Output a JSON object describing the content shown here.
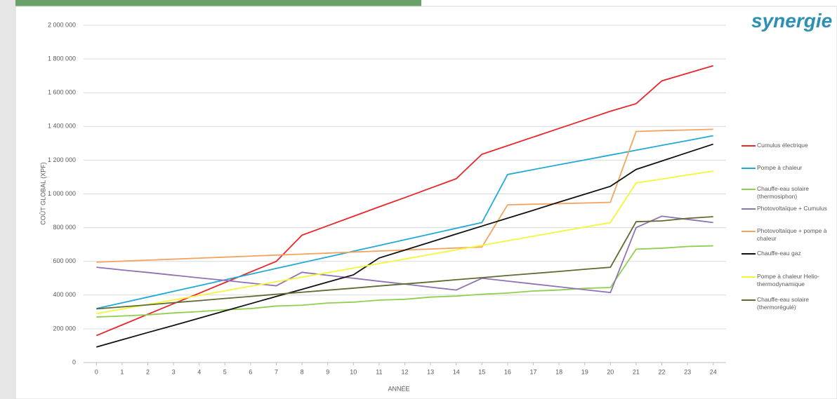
{
  "chart_data": {
    "type": "line",
    "xlabel": "ANNÉE",
    "ylabel": "COÛT GLOBAL (XPF)",
    "logo": "synergie",
    "x": [
      0,
      1,
      2,
      3,
      4,
      5,
      6,
      7,
      8,
      9,
      10,
      11,
      12,
      13,
      14,
      15,
      16,
      17,
      18,
      19,
      20,
      21,
      22,
      23,
      24
    ],
    "xlim": [
      -0.5,
      24.5
    ],
    "ylim": [
      0,
      2000000
    ],
    "yticks": [
      0,
      {
        "value": 200000,
        "label": "200 000"
      },
      {
        "value": 400000,
        "label": "400 000"
      },
      {
        "value": 600000,
        "label": "600 000"
      },
      {
        "value": 800000,
        "label": "800 000"
      },
      {
        "value": 1000000,
        "label": "1 000 000"
      },
      {
        "value": 1200000,
        "label": "1 200 000"
      },
      {
        "value": 1400000,
        "label": "1 400 000"
      },
      {
        "value": 1600000,
        "label": "1 600 000"
      },
      {
        "value": 1800000,
        "label": "1 800 000"
      },
      {
        "value": 2000000,
        "label": "2 000 000"
      }
    ],
    "grid": true,
    "legend": "right",
    "series": [
      {
        "name": "Cumulus électrique",
        "color": "#e8262b",
        "values": [
          160000,
          223000,
          286000,
          349000,
          411000,
          474000,
          537000,
          600000,
          755000,
          811000,
          867000,
          923000,
          978000,
          1034000,
          1090000,
          1235000,
          1286000,
          1337000,
          1388000,
          1439000,
          1490000,
          1535000,
          1670000,
          1715000,
          1760000
        ]
      },
      {
        "name": "Pompe à chaleur",
        "color": "#22a9d8",
        "values": [
          320000,
          354000,
          388000,
          422000,
          456000,
          490000,
          524000,
          558000,
          592000,
          626000,
          660000,
          694000,
          728000,
          762000,
          796000,
          830000,
          1115000,
          1144000,
          1173000,
          1201000,
          1230000,
          1259000,
          1288000,
          1316000,
          1345000
        ]
      },
      {
        "name": "Chauffe-eau solaire (thermosiphon)",
        "color": "#8fcf4f",
        "values": [
          270000,
          276000,
          283000,
          294000,
          302000,
          313000,
          320000,
          335000,
          340000,
          353000,
          358000,
          370000,
          375000,
          388000,
          394000,
          405000,
          412000,
          424000,
          430000,
          440000,
          445000,
          672000,
          678000,
          688000,
          692000
        ]
      },
      {
        "name": "Photovoltaïque + Cumulus",
        "color": "#8f72b5",
        "values": [
          565000,
          549000,
          534000,
          518000,
          502000,
          487000,
          471000,
          455000,
          535000,
          517000,
          500000,
          482000,
          465000,
          447000,
          430000,
          500000,
          483000,
          466000,
          449000,
          432000,
          415000,
          800000,
          868000,
          849000,
          830000
        ]
      },
      {
        "name": "Photovoltaïque + pompe à chaleur",
        "color": "#f4a460",
        "values": [
          595000,
          601000,
          607000,
          613000,
          619000,
          625000,
          631000,
          637000,
          643000,
          649000,
          655000,
          661000,
          667000,
          673000,
          679000,
          685000,
          935000,
          939000,
          942000,
          946000,
          950000,
          1370000,
          1375000,
          1379000,
          1383000
        ]
      },
      {
        "name": "Chauffe-eau gaz",
        "color": "#111111",
        "values": [
          92000,
          135000,
          178000,
          220000,
          263000,
          306000,
          349000,
          392000,
          434000,
          477000,
          520000,
          620000,
          667000,
          714000,
          762000,
          809000,
          856000,
          903000,
          951000,
          998000,
          1045000,
          1145000,
          1195000,
          1245000,
          1295000
        ]
      },
      {
        "name": "Pompe à chaleur Helio-thermodynamique",
        "color": "#f5f53a",
        "values": [
          290000,
          317000,
          344000,
          371000,
          398000,
          425000,
          452000,
          479000,
          506000,
          533000,
          560000,
          587000,
          614000,
          641000,
          668000,
          695000,
          722000,
          749000,
          776000,
          803000,
          830000,
          1065000,
          1088000,
          1112000,
          1135000
        ]
      },
      {
        "name": "Chauffe-eau solaire (thermorégulé)",
        "color": "#5f6b2f",
        "values": [
          318000,
          330000,
          342000,
          355000,
          367000,
          380000,
          392000,
          405000,
          417000,
          429000,
          441000,
          454000,
          466000,
          478000,
          491000,
          503000,
          516000,
          528000,
          540000,
          553000,
          565000,
          835000,
          840000,
          855000,
          865000
        ]
      }
    ]
  }
}
